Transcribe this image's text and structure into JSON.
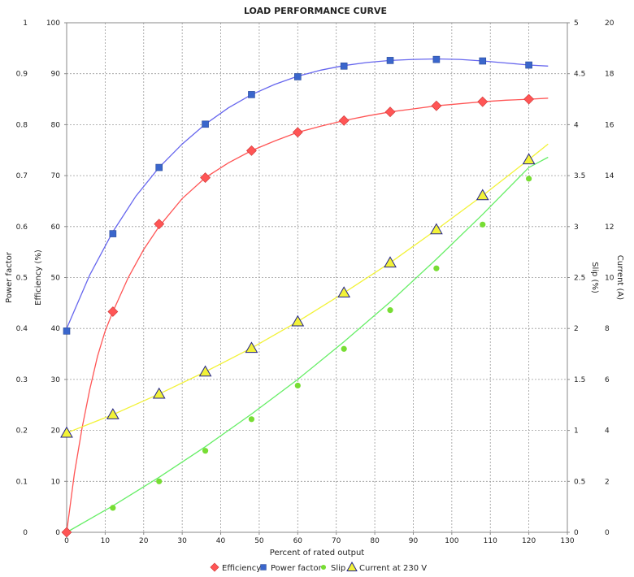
{
  "chart_data": {
    "type": "line",
    "title": "LOAD PERFORMANCE CURVE",
    "xlabel": "Percent of rated output",
    "xlim": [
      0,
      130
    ],
    "xticks": [
      0,
      10,
      20,
      30,
      40,
      50,
      60,
      70,
      80,
      90,
      100,
      110,
      120,
      130
    ],
    "axes": [
      {
        "id": "pf",
        "label": "Power factor",
        "side": "left",
        "lim": [
          0,
          1
        ],
        "ticks": [
          "0",
          "0.1",
          "0.2",
          "0.3",
          "0.4",
          "0.5",
          "0.6",
          "0.7",
          "0.8",
          "0.9",
          "1"
        ]
      },
      {
        "id": "eff",
        "label": "Efficiency (%)",
        "side": "left",
        "lim": [
          0,
          100
        ],
        "ticks": [
          "0",
          "10",
          "20",
          "30",
          "40",
          "50",
          "60",
          "70",
          "80",
          "90",
          "100"
        ]
      },
      {
        "id": "slip",
        "label": "Slip (%)",
        "side": "right",
        "lim": [
          0,
          5
        ],
        "ticks": [
          "0",
          "0.5",
          "1",
          "1.5",
          "2",
          "2.5",
          "3",
          "3.5",
          "4",
          "4.5",
          "5"
        ]
      },
      {
        "id": "cur",
        "label": "Current (A)",
        "side": "right",
        "lim": [
          0,
          20
        ],
        "ticks": [
          "0",
          "2",
          "4",
          "6",
          "8",
          "10",
          "12",
          "14",
          "16",
          "18",
          "20"
        ]
      }
    ],
    "grid": true,
    "legend_position": "bottom-center",
    "x": [
      0,
      12,
      24,
      36,
      48,
      60,
      72,
      84,
      96,
      108,
      120
    ],
    "series": [
      {
        "name": "Efficiency",
        "axis": "eff",
        "marker": "diamond",
        "color": "#ff5555",
        "values": [
          0,
          43.3,
          60.5,
          69.6,
          74.9,
          78.5,
          80.8,
          82.5,
          83.7,
          84.5,
          85.0
        ],
        "curve_x": [
          0,
          2,
          4,
          6,
          8,
          10,
          12,
          16,
          20,
          24,
          30,
          36,
          42,
          48,
          54,
          60,
          66,
          72,
          78,
          84,
          90,
          96,
          102,
          108,
          114,
          120,
          125
        ],
        "curve": [
          0,
          11.5,
          20.5,
          28.0,
          34.5,
          39.5,
          43.3,
          50.0,
          55.5,
          60.0,
          65.5,
          69.6,
          72.5,
          74.9,
          76.8,
          78.5,
          79.7,
          80.8,
          81.7,
          82.5,
          83.1,
          83.7,
          84.1,
          84.5,
          84.8,
          85.0,
          85.2
        ]
      },
      {
        "name": "Power factor",
        "axis": "pf",
        "marker": "square",
        "color": "#3a66cc",
        "line_color": "#6666ee",
        "values": [
          0.395,
          0.586,
          0.716,
          0.801,
          0.859,
          0.894,
          0.915,
          0.926,
          0.928,
          0.925,
          0.917
        ],
        "curve_x": [
          0,
          6,
          12,
          18,
          24,
          30,
          36,
          42,
          48,
          54,
          60,
          66,
          72,
          78,
          84,
          90,
          96,
          102,
          108,
          114,
          120,
          125
        ],
        "curve": [
          0.4,
          0.505,
          0.59,
          0.66,
          0.716,
          0.762,
          0.801,
          0.833,
          0.859,
          0.879,
          0.895,
          0.907,
          0.916,
          0.922,
          0.926,
          0.928,
          0.929,
          0.928,
          0.925,
          0.921,
          0.917,
          0.915
        ]
      },
      {
        "name": "Slip",
        "axis": "slip",
        "marker": "circle",
        "color": "#77dd33",
        "line_color": "#66ee66",
        "values": [
          0,
          0.24,
          0.5,
          0.8,
          1.11,
          1.44,
          1.8,
          2.18,
          2.59,
          3.02,
          3.47
        ],
        "curve_x": [
          0,
          12,
          24,
          36,
          48,
          60,
          72,
          84,
          96,
          108,
          120,
          125
        ],
        "curve": [
          0.0,
          0.26,
          0.54,
          0.84,
          1.16,
          1.5,
          1.87,
          2.26,
          2.68,
          3.12,
          3.58,
          3.68
        ]
      },
      {
        "name": "Current at 230 V",
        "axis": "cur",
        "marker": "triangle",
        "color": "#f2f238",
        "line_color": "#f2f238",
        "values": [
          3.9,
          4.62,
          5.43,
          6.3,
          7.23,
          8.27,
          9.4,
          10.58,
          11.88,
          13.22,
          14.63
        ],
        "curve_x": [
          0,
          12,
          24,
          36,
          48,
          60,
          72,
          84,
          96,
          108,
          120,
          125
        ],
        "curve": [
          3.9,
          4.62,
          5.43,
          6.3,
          7.23,
          8.27,
          9.4,
          10.58,
          11.88,
          13.22,
          14.63,
          15.24
        ]
      }
    ]
  }
}
